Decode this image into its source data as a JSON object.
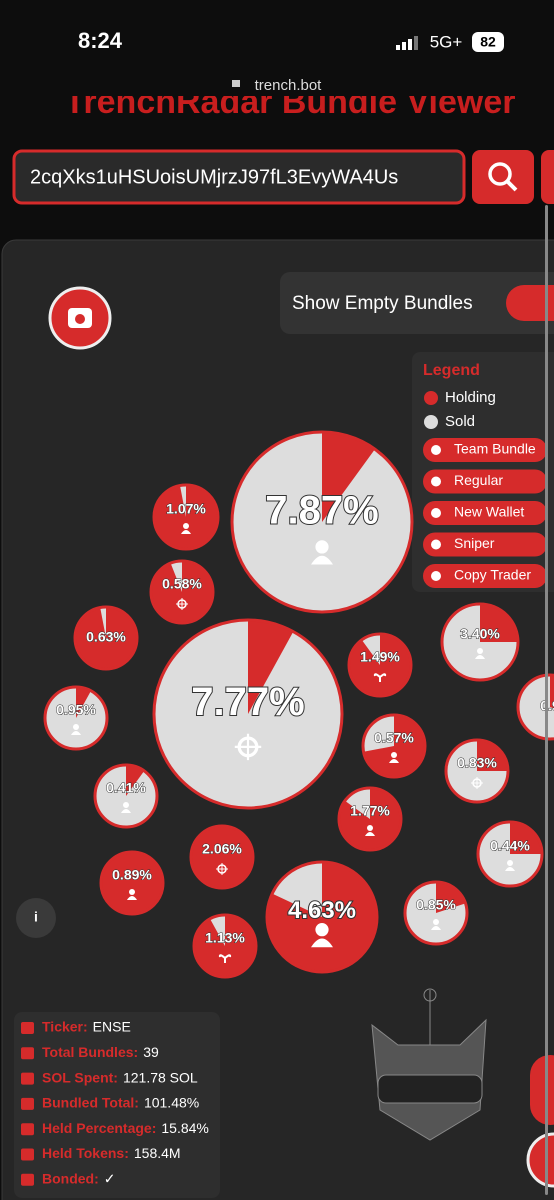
{
  "status": {
    "time": "8:24",
    "network": "5G+",
    "battery": "82"
  },
  "url": "trench.bot",
  "header": {
    "title": "TrenchRadar Bundle Viewer",
    "search_value": "2cqXks1uHSUoisUMjrzJ97fL3EvyWA4Us"
  },
  "toggle": "Show Empty Bundles",
  "legend": {
    "title": "Legend",
    "holding": "Holding",
    "sold": "Sold",
    "types": [
      "Team Bundle",
      "Regular",
      "New Wallet",
      "Sniper",
      "Copy Trader"
    ]
  },
  "bubbles": [
    {
      "label": "1.07%",
      "holding": 97
    },
    {
      "label": "7.87%",
      "holding": 10
    },
    {
      "label": "0.58%",
      "holding": 94
    },
    {
      "label": "0.63%",
      "holding": 97
    },
    {
      "label": "7.77%",
      "holding": 8
    },
    {
      "label": "1.49%",
      "holding": 90
    },
    {
      "label": "3.40%",
      "holding": 25
    },
    {
      "label": "0.9",
      "holding": 30
    },
    {
      "label": "0.95%",
      "holding": 8
    },
    {
      "label": "0.57%",
      "holding": 72
    },
    {
      "label": "0.41%",
      "holding": 10
    },
    {
      "label": "0.83%",
      "holding": 25
    },
    {
      "label": "1.77%",
      "holding": 85
    },
    {
      "label": "2.06%",
      "holding": 100
    },
    {
      "label": "0.44%",
      "holding": 25
    },
    {
      "label": "0.89%",
      "holding": 100
    },
    {
      "label": "4.63%",
      "holding": 82
    },
    {
      "label": "0.85%",
      "holding": 20
    },
    {
      "label": "1.13%",
      "holding": 92
    }
  ],
  "stats": [
    {
      "label": "Ticker:",
      "value": "ENSE"
    },
    {
      "label": "Total Bundles:",
      "value": "39"
    },
    {
      "label": "SOL Spent:",
      "value": "121.78 SOL"
    },
    {
      "label": "Bundled Total:",
      "value": "101.48%"
    },
    {
      "label": "Held Percentage:",
      "value": "15.84%"
    },
    {
      "label": "Held Tokens:",
      "value": "158.4M"
    },
    {
      "label": "Bonded:",
      "value": "✓"
    }
  ]
}
